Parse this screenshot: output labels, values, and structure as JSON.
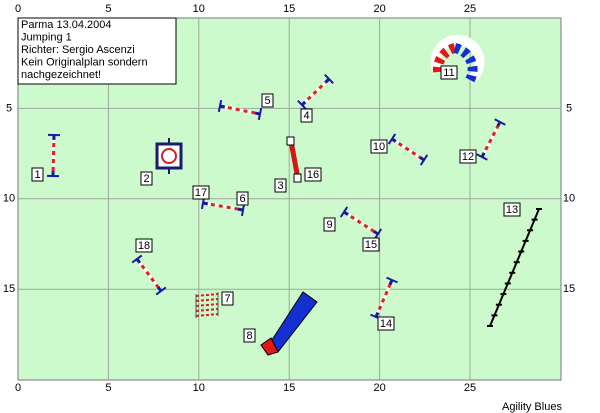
{
  "info": {
    "lines": [
      "Parma 13.04.2004",
      "Jumping 1",
      "Richter: Sergio Ascenzi",
      "Kein Originalplan sondern",
      "nachgezeichnet!"
    ]
  },
  "axes": {
    "x": [
      0,
      5,
      10,
      15,
      20,
      25
    ],
    "y": [
      5,
      10,
      15
    ]
  },
  "obstacles": [
    "1",
    "2",
    "3",
    "4",
    "5",
    "6",
    "7",
    "8",
    "9",
    "10",
    "11",
    "12",
    "13",
    "14",
    "15",
    "16",
    "17",
    "18"
  ],
  "footer": "Agility Blues"
}
